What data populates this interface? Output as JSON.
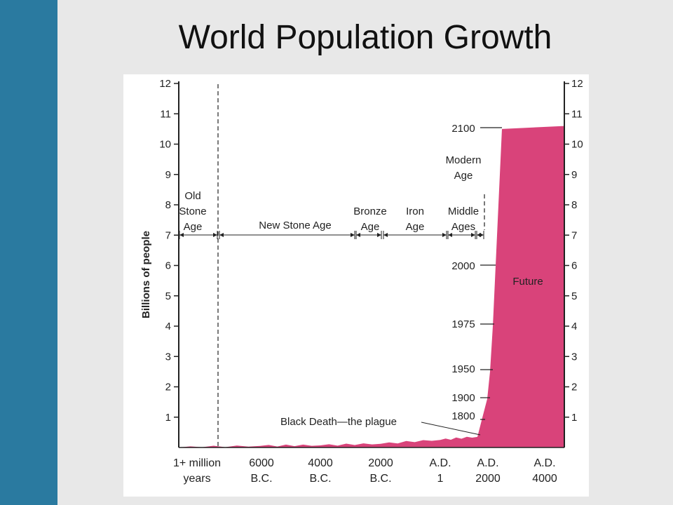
{
  "slide": {
    "title": "World Population Growth",
    "colors": {
      "sidebar": "#2a7aa0",
      "background": "#e8e8e8",
      "panel": "#ffffff",
      "area_fill": "#d9437a"
    }
  },
  "chart_data": {
    "type": "area",
    "title": "World Population Growth",
    "ylabel": "Billions of people",
    "ylim": [
      0,
      12
    ],
    "y_ticks": [
      1,
      2,
      3,
      4,
      5,
      6,
      7,
      8,
      9,
      10,
      11,
      12
    ],
    "x_tick_labels": [
      [
        "1+ million",
        "years"
      ],
      [
        "6000",
        "B.C."
      ],
      [
        "4000",
        "B.C."
      ],
      [
        "2000",
        "B.C."
      ],
      [
        "A.D.",
        "1"
      ],
      [
        "A.D.",
        "2000"
      ],
      [
        "A.D.",
        "4000"
      ]
    ],
    "eras": [
      {
        "label": [
          "Old",
          "Stone",
          "Age"
        ]
      },
      {
        "label": [
          "New Stone Age"
        ]
      },
      {
        "label": [
          "Bronze",
          "Age"
        ]
      },
      {
        "label": [
          "Iron",
          "Age"
        ]
      },
      {
        "label": [
          "Middle",
          "Ages"
        ]
      },
      {
        "label": [
          "Modern",
          "Age"
        ]
      }
    ],
    "year_markers": [
      {
        "label": "1800",
        "value": 0.98
      },
      {
        "label": "1900",
        "value": 1.6
      },
      {
        "label": "1950",
        "value": 2.5
      },
      {
        "label": "1975",
        "value": 4.0
      },
      {
        "label": "2000",
        "value": 6.0
      },
      {
        "label": "2100",
        "value": 10.5
      }
    ],
    "annotations": [
      {
        "text": "Black Death—the plague",
        "value": 0.35
      },
      {
        "text": "Future"
      }
    ],
    "series": [
      {
        "points": [
          {
            "x": "1+ million years",
            "y": 0.0
          },
          {
            "x": "6000 B.C.",
            "y": 0.05
          },
          {
            "x": "4000 B.C.",
            "y": 0.07
          },
          {
            "x": "2000 B.C.",
            "y": 0.12
          },
          {
            "x": "A.D. 1",
            "y": 0.25
          },
          {
            "x": "A.D. 1300s (Black Death)",
            "y": 0.35
          },
          {
            "x": "A.D. 1800",
            "y": 0.98
          },
          {
            "x": "A.D. 1900",
            "y": 1.6
          },
          {
            "x": "A.D. 1950",
            "y": 2.5
          },
          {
            "x": "A.D. 1975",
            "y": 4.0
          },
          {
            "x": "A.D. 2000",
            "y": 6.0
          },
          {
            "x": "A.D. 2100",
            "y": 10.5
          },
          {
            "x": "A.D. 4000",
            "y": 10.6
          }
        ]
      }
    ]
  }
}
